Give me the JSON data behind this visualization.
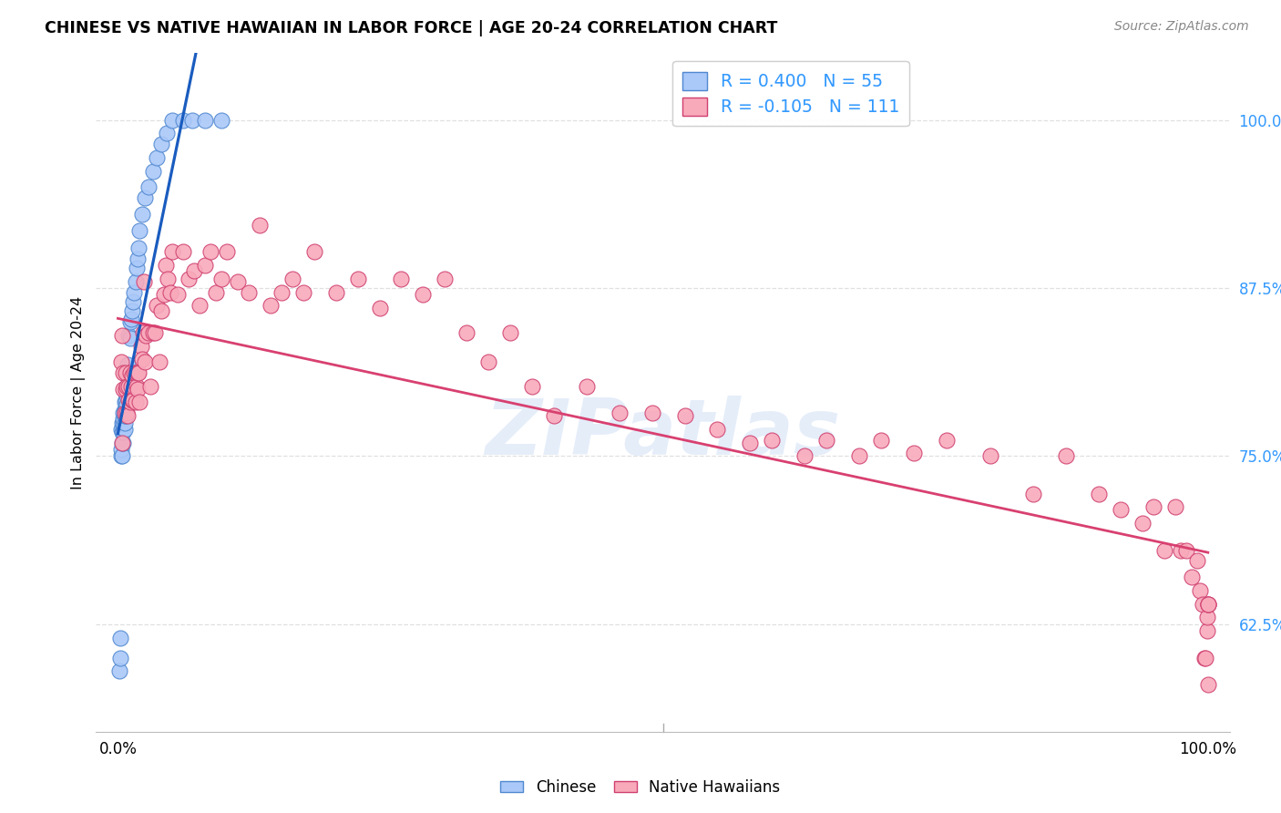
{
  "title": "CHINESE VS NATIVE HAWAIIAN IN LABOR FORCE | AGE 20-24 CORRELATION CHART",
  "source": "Source: ZipAtlas.com",
  "ylabel": "In Labor Force | Age 20-24",
  "ytick_labels": [
    "62.5%",
    "75.0%",
    "87.5%",
    "100.0%"
  ],
  "ytick_values": [
    0.625,
    0.75,
    0.875,
    1.0
  ],
  "xlim": [
    -0.02,
    1.02
  ],
  "ylim": [
    0.545,
    1.05
  ],
  "chinese_color": "#aac8f8",
  "hawaiian_color": "#f8aabb",
  "chinese_edge": "#5088d0",
  "hawaiian_edge": "#d04070",
  "blue_line_color": "#1a5cbf",
  "pink_line_color": "#d84070",
  "watermark_text": "ZIPatlas",
  "background_color": "#ffffff",
  "grid_color": "#e0e0e0",
  "chinese_R": 0.4,
  "chinese_N": 55,
  "hawaiian_R": -0.105,
  "hawaiian_N": 111,
  "chinese_x": [
    0.001,
    0.002,
    0.002,
    0.003,
    0.003,
    0.003,
    0.004,
    0.004,
    0.004,
    0.004,
    0.005,
    0.005,
    0.005,
    0.005,
    0.005,
    0.006,
    0.006,
    0.006,
    0.006,
    0.006,
    0.006,
    0.007,
    0.007,
    0.007,
    0.007,
    0.008,
    0.008,
    0.008,
    0.009,
    0.009,
    0.01,
    0.01,
    0.011,
    0.011,
    0.012,
    0.013,
    0.014,
    0.015,
    0.016,
    0.017,
    0.018,
    0.019,
    0.02,
    0.022,
    0.025,
    0.028,
    0.032,
    0.036,
    0.04,
    0.045,
    0.05,
    0.06,
    0.068,
    0.08,
    0.095
  ],
  "chinese_y": [
    0.59,
    0.6,
    0.615,
    0.75,
    0.755,
    0.77,
    0.75,
    0.76,
    0.768,
    0.775,
    0.76,
    0.768,
    0.775,
    0.778,
    0.782,
    0.77,
    0.775,
    0.78,
    0.782,
    0.785,
    0.79,
    0.78,
    0.785,
    0.792,
    0.798,
    0.788,
    0.795,
    0.802,
    0.8,
    0.818,
    0.808,
    0.84,
    0.838,
    0.85,
    0.852,
    0.858,
    0.865,
    0.872,
    0.88,
    0.89,
    0.897,
    0.905,
    0.918,
    0.93,
    0.942,
    0.95,
    0.962,
    0.972,
    0.982,
    0.99,
    1.0,
    1.0,
    1.0,
    1.0,
    1.0
  ],
  "hawaiian_x": [
    0.003,
    0.004,
    0.004,
    0.005,
    0.005,
    0.006,
    0.007,
    0.007,
    0.008,
    0.008,
    0.009,
    0.01,
    0.01,
    0.011,
    0.011,
    0.012,
    0.013,
    0.013,
    0.014,
    0.015,
    0.015,
    0.016,
    0.016,
    0.017,
    0.018,
    0.018,
    0.019,
    0.02,
    0.021,
    0.022,
    0.023,
    0.024,
    0.025,
    0.026,
    0.028,
    0.03,
    0.032,
    0.034,
    0.036,
    0.038,
    0.04,
    0.042,
    0.044,
    0.046,
    0.048,
    0.05,
    0.055,
    0.06,
    0.065,
    0.07,
    0.075,
    0.08,
    0.085,
    0.09,
    0.095,
    0.1,
    0.11,
    0.12,
    0.13,
    0.14,
    0.15,
    0.16,
    0.17,
    0.18,
    0.2,
    0.22,
    0.24,
    0.26,
    0.28,
    0.3,
    0.32,
    0.34,
    0.36,
    0.38,
    0.4,
    0.43,
    0.46,
    0.49,
    0.52,
    0.55,
    0.58,
    0.6,
    0.63,
    0.65,
    0.68,
    0.7,
    0.73,
    0.76,
    0.8,
    0.84,
    0.87,
    0.9,
    0.92,
    0.94,
    0.95,
    0.96,
    0.97,
    0.975,
    0.98,
    0.985,
    0.99,
    0.993,
    0.995,
    0.997,
    0.998,
    0.999,
    0.999,
    1.0,
    1.0,
    1.0,
    1.0
  ],
  "hawaiian_y": [
    0.82,
    0.76,
    0.84,
    0.8,
    0.812,
    0.782,
    0.8,
    0.812,
    0.782,
    0.802,
    0.78,
    0.792,
    0.802,
    0.79,
    0.812,
    0.802,
    0.81,
    0.792,
    0.792,
    0.802,
    0.812,
    0.79,
    0.812,
    0.802,
    0.8,
    0.812,
    0.812,
    0.79,
    0.832,
    0.822,
    0.842,
    0.88,
    0.82,
    0.84,
    0.842,
    0.802,
    0.842,
    0.842,
    0.862,
    0.82,
    0.858,
    0.87,
    0.892,
    0.882,
    0.872,
    0.902,
    0.87,
    0.902,
    0.882,
    0.888,
    0.862,
    0.892,
    0.902,
    0.872,
    0.882,
    0.902,
    0.88,
    0.872,
    0.922,
    0.862,
    0.872,
    0.882,
    0.872,
    0.902,
    0.872,
    0.882,
    0.86,
    0.882,
    0.87,
    0.882,
    0.842,
    0.82,
    0.842,
    0.802,
    0.78,
    0.802,
    0.782,
    0.782,
    0.78,
    0.77,
    0.76,
    0.762,
    0.75,
    0.762,
    0.75,
    0.762,
    0.752,
    0.762,
    0.75,
    0.722,
    0.75,
    0.722,
    0.71,
    0.7,
    0.712,
    0.68,
    0.712,
    0.68,
    0.68,
    0.66,
    0.672,
    0.65,
    0.64,
    0.6,
    0.6,
    0.62,
    0.63,
    0.64,
    0.64,
    0.58,
    0.64
  ]
}
